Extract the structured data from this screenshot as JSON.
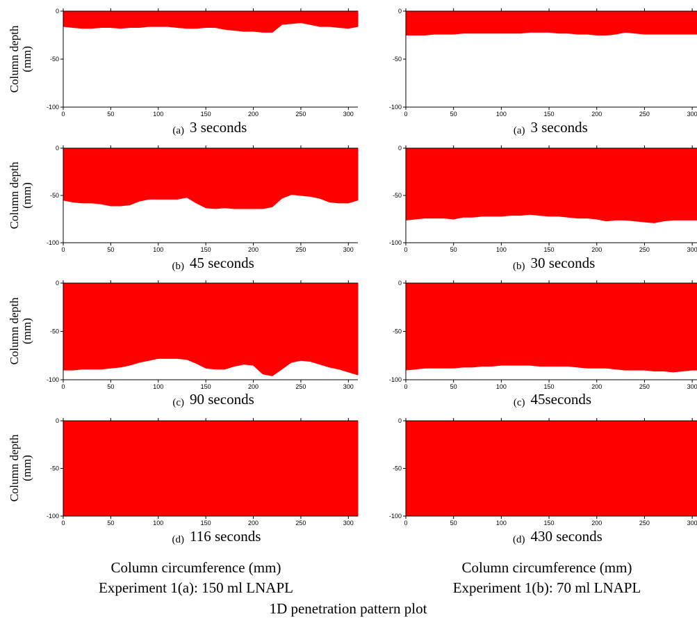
{
  "figure_title": "1D penetration pattern plot",
  "xlabel": "Column circumference (mm)",
  "ylabel": [
    "Column depth",
    "(mm)"
  ],
  "experiments": [
    "Experiment 1(a): 150 ml LNAPL",
    "Experiment 1(b): 70 ml LNAPL"
  ],
  "colors": {
    "fill": "#ff0000",
    "axis": "#000000",
    "background": "#ffffff"
  },
  "chart_data": [
    {
      "type": "area",
      "panel": "(a)",
      "time": "3 seconds",
      "xlim": [
        0,
        310
      ],
      "ylim": [
        -100,
        0
      ],
      "xticks": [
        0,
        50,
        100,
        150,
        200,
        250,
        300
      ],
      "yticks": [
        0,
        -50,
        -100
      ],
      "x": [
        0,
        10,
        20,
        30,
        40,
        50,
        60,
        70,
        80,
        90,
        100,
        110,
        120,
        130,
        140,
        150,
        160,
        170,
        180,
        190,
        200,
        210,
        220,
        230,
        240,
        250,
        260,
        270,
        280,
        290,
        300,
        310
      ],
      "y": [
        -16,
        -17,
        -18,
        -18,
        -17,
        -17,
        -18,
        -17,
        -17,
        -16,
        -16,
        -16,
        -17,
        -18,
        -18,
        -17,
        -17,
        -19,
        -20,
        -21,
        -21,
        -22,
        -22,
        -14,
        -13,
        -12,
        -14,
        -16,
        -16,
        -17,
        -18,
        -16
      ]
    },
    {
      "type": "area",
      "panel": "(a)",
      "time": "3 seconds",
      "xlim": [
        0,
        305
      ],
      "ylim": [
        -100,
        0
      ],
      "xticks": [
        0,
        50,
        100,
        150,
        200,
        250,
        300
      ],
      "yticks": [
        0,
        -50,
        -100
      ],
      "x": [
        0,
        10,
        20,
        30,
        40,
        50,
        60,
        70,
        80,
        90,
        100,
        110,
        120,
        130,
        140,
        150,
        160,
        170,
        180,
        190,
        200,
        210,
        220,
        230,
        240,
        250,
        260,
        270,
        280,
        290,
        300,
        305
      ],
      "y": [
        -25,
        -25,
        -25,
        -24,
        -24,
        -24,
        -23,
        -23,
        -23,
        -23,
        -23,
        -23,
        -23,
        -22,
        -22,
        -22,
        -23,
        -23,
        -24,
        -24,
        -25,
        -25,
        -24,
        -22,
        -23,
        -24,
        -24,
        -24,
        -24,
        -24,
        -24,
        -24
      ]
    },
    {
      "type": "area",
      "panel": "(b)",
      "time": "45 seconds",
      "xlim": [
        0,
        310
      ],
      "ylim": [
        -100,
        0
      ],
      "xticks": [
        0,
        50,
        100,
        150,
        200,
        250,
        300
      ],
      "yticks": [
        0,
        -50,
        -100
      ],
      "x": [
        0,
        10,
        20,
        30,
        40,
        50,
        60,
        70,
        80,
        90,
        100,
        110,
        120,
        130,
        140,
        150,
        160,
        170,
        180,
        190,
        200,
        210,
        220,
        230,
        240,
        250,
        260,
        270,
        280,
        290,
        300,
        310
      ],
      "y": [
        -55,
        -57,
        -58,
        -58,
        -59,
        -61,
        -61,
        -60,
        -56,
        -54,
        -54,
        -54,
        -54,
        -52,
        -58,
        -63,
        -64,
        -63,
        -64,
        -64,
        -64,
        -64,
        -62,
        -53,
        -49,
        -50,
        -51,
        -53,
        -57,
        -58,
        -58,
        -55
      ]
    },
    {
      "type": "area",
      "panel": "(b)",
      "time": "30 seconds",
      "xlim": [
        0,
        305
      ],
      "ylim": [
        -100,
        0
      ],
      "xticks": [
        0,
        50,
        100,
        150,
        200,
        250,
        300
      ],
      "yticks": [
        0,
        -50,
        -100
      ],
      "x": [
        0,
        10,
        20,
        30,
        40,
        50,
        60,
        70,
        80,
        90,
        100,
        110,
        120,
        130,
        140,
        150,
        160,
        170,
        180,
        190,
        200,
        210,
        220,
        230,
        240,
        250,
        260,
        270,
        280,
        290,
        300,
        305
      ],
      "y": [
        -76,
        -75,
        -74,
        -74,
        -74,
        -75,
        -73,
        -73,
        -72,
        -72,
        -72,
        -71,
        -71,
        -70,
        -71,
        -72,
        -72,
        -73,
        -74,
        -74,
        -75,
        -77,
        -76,
        -76,
        -77,
        -78,
        -79,
        -77,
        -76,
        -76,
        -76,
        -76
      ]
    },
    {
      "type": "area",
      "panel": "(c)",
      "time": "90 seconds",
      "xlim": [
        0,
        310
      ],
      "ylim": [
        -100,
        0
      ],
      "xticks": [
        0,
        50,
        100,
        150,
        200,
        250,
        300
      ],
      "yticks": [
        0,
        -50,
        -100
      ],
      "x": [
        0,
        10,
        20,
        30,
        40,
        50,
        60,
        70,
        80,
        90,
        100,
        110,
        120,
        130,
        140,
        150,
        160,
        170,
        180,
        190,
        200,
        210,
        220,
        230,
        240,
        250,
        260,
        270,
        280,
        290,
        300,
        310
      ],
      "y": [
        -90,
        -90,
        -89,
        -89,
        -89,
        -88,
        -87,
        -85,
        -82,
        -80,
        -78,
        -78,
        -78,
        -79,
        -83,
        -88,
        -89,
        -89,
        -86,
        -84,
        -85,
        -94,
        -96,
        -89,
        -82,
        -80,
        -81,
        -84,
        -87,
        -89,
        -92,
        -95
      ]
    },
    {
      "type": "area",
      "panel": "(c)",
      "time": "45seconds",
      "xlim": [
        0,
        305
      ],
      "ylim": [
        -100,
        0
      ],
      "xticks": [
        0,
        50,
        100,
        150,
        200,
        250,
        300
      ],
      "yticks": [
        0,
        -50,
        -100
      ],
      "x": [
        0,
        10,
        20,
        30,
        40,
        50,
        60,
        70,
        80,
        90,
        100,
        110,
        120,
        130,
        140,
        150,
        160,
        170,
        180,
        190,
        200,
        210,
        220,
        230,
        240,
        250,
        260,
        270,
        280,
        290,
        300,
        305
      ],
      "y": [
        -90,
        -89,
        -88,
        -88,
        -88,
        -88,
        -87,
        -87,
        -86,
        -86,
        -85,
        -85,
        -85,
        -85,
        -86,
        -86,
        -86,
        -86,
        -87,
        -88,
        -88,
        -88,
        -89,
        -90,
        -90,
        -90,
        -91,
        -91,
        -92,
        -91,
        -90,
        -90
      ]
    },
    {
      "type": "area",
      "panel": "(d)",
      "time": "116 seconds",
      "xlim": [
        0,
        310
      ],
      "ylim": [
        -100,
        0
      ],
      "xticks": [
        0,
        50,
        100,
        150,
        200,
        250,
        300
      ],
      "yticks": [
        0,
        -50,
        -100
      ],
      "x": [
        0,
        310
      ],
      "y": [
        -100,
        -100
      ]
    },
    {
      "type": "area",
      "panel": "(d)",
      "time": "430 seconds",
      "xlim": [
        0,
        305
      ],
      "ylim": [
        -100,
        0
      ],
      "xticks": [
        0,
        50,
        100,
        150,
        200,
        250,
        300
      ],
      "yticks": [
        0,
        -50,
        -100
      ],
      "x": [
        0,
        305
      ],
      "y": [
        -100,
        -100
      ]
    }
  ]
}
